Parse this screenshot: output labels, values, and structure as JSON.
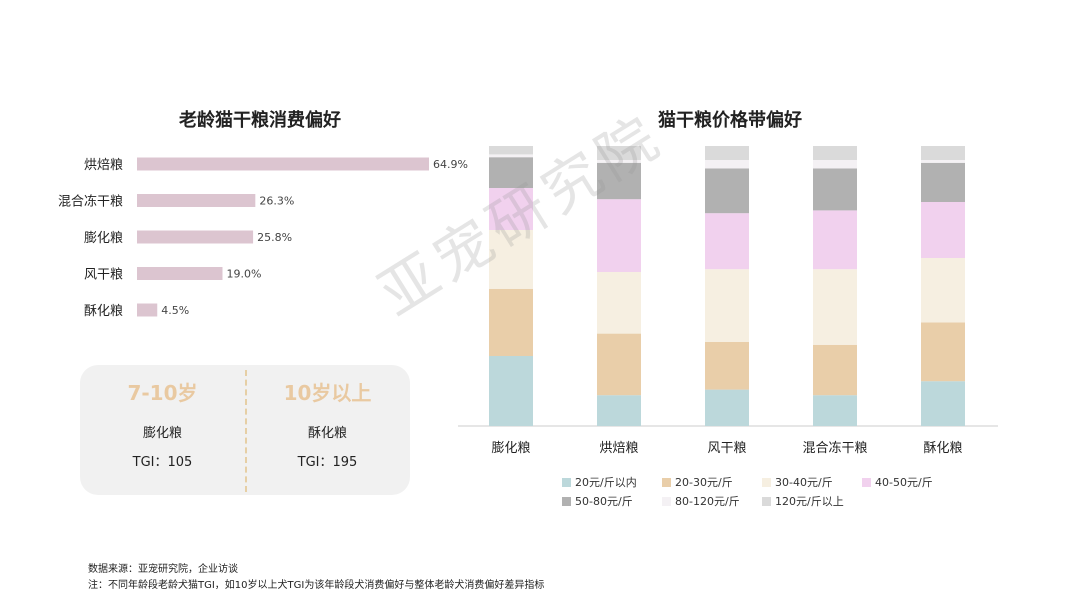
{
  "watermark": "亚宠研究院",
  "chart_data": [
    {
      "type": "bar",
      "orientation": "horizontal",
      "title": "老龄猫干粮消费偏好",
      "categories": [
        "烘焙粮",
        "混合冻干粮",
        "膨化粮",
        "风干粮",
        "酥化粮"
      ],
      "values": [
        64.9,
        26.3,
        25.8,
        19.0,
        4.5
      ],
      "value_labels": [
        "64.9%",
        "26.3%",
        "25.8%",
        "19.0%",
        "4.5%"
      ],
      "unit": "%",
      "color": "#dcc5d0"
    },
    {
      "type": "bar",
      "stacked": true,
      "normalized": true,
      "title": "猫干粮价格带偏好",
      "categories": [
        "膨化粮",
        "烘焙粮",
        "风干粮",
        "混合冻干粮",
        "酥化粮"
      ],
      "series": [
        {
          "name": "20元/斤以内",
          "color": "#bcd8db",
          "values": [
            25,
            11,
            13,
            11,
            16
          ]
        },
        {
          "name": "20-30元/斤",
          "color": "#e9cea9",
          "values": [
            24,
            22,
            17,
            18,
            21
          ]
        },
        {
          "name": "30-40元/斤",
          "color": "#f6efe1",
          "values": [
            21,
            22,
            26,
            27,
            23
          ]
        },
        {
          "name": "40-50元/斤",
          "color": "#f1d1ee",
          "values": [
            15,
            26,
            20,
            21,
            20
          ]
        },
        {
          "name": "50-80元/斤",
          "color": "#b1b1b1",
          "values": [
            11,
            13,
            16,
            15,
            14
          ]
        },
        {
          "name": "80-120元/斤",
          "color": "#f4f1f4",
          "values": [
            1,
            1,
            3,
            3,
            1
          ]
        },
        {
          "name": "120元/斤以上",
          "color": "#dadada",
          "values": [
            3,
            5,
            5,
            5,
            5
          ]
        }
      ],
      "ylim": [
        0,
        100
      ],
      "legend_position": "bottom"
    }
  ],
  "tgi": [
    {
      "age": "7-10岁",
      "item": "膨化粮",
      "value": "TGI：105"
    },
    {
      "age": "10岁以上",
      "item": "酥化粮",
      "value": "TGI：195"
    }
  ],
  "footer": {
    "source": "数据来源：亚宠研究院，企业访谈",
    "note": "注：不同年龄段老龄犬猫TGI，如10岁以上犬TGI为该年龄段犬消费偏好与整体老龄犬消费偏好差异指标"
  }
}
